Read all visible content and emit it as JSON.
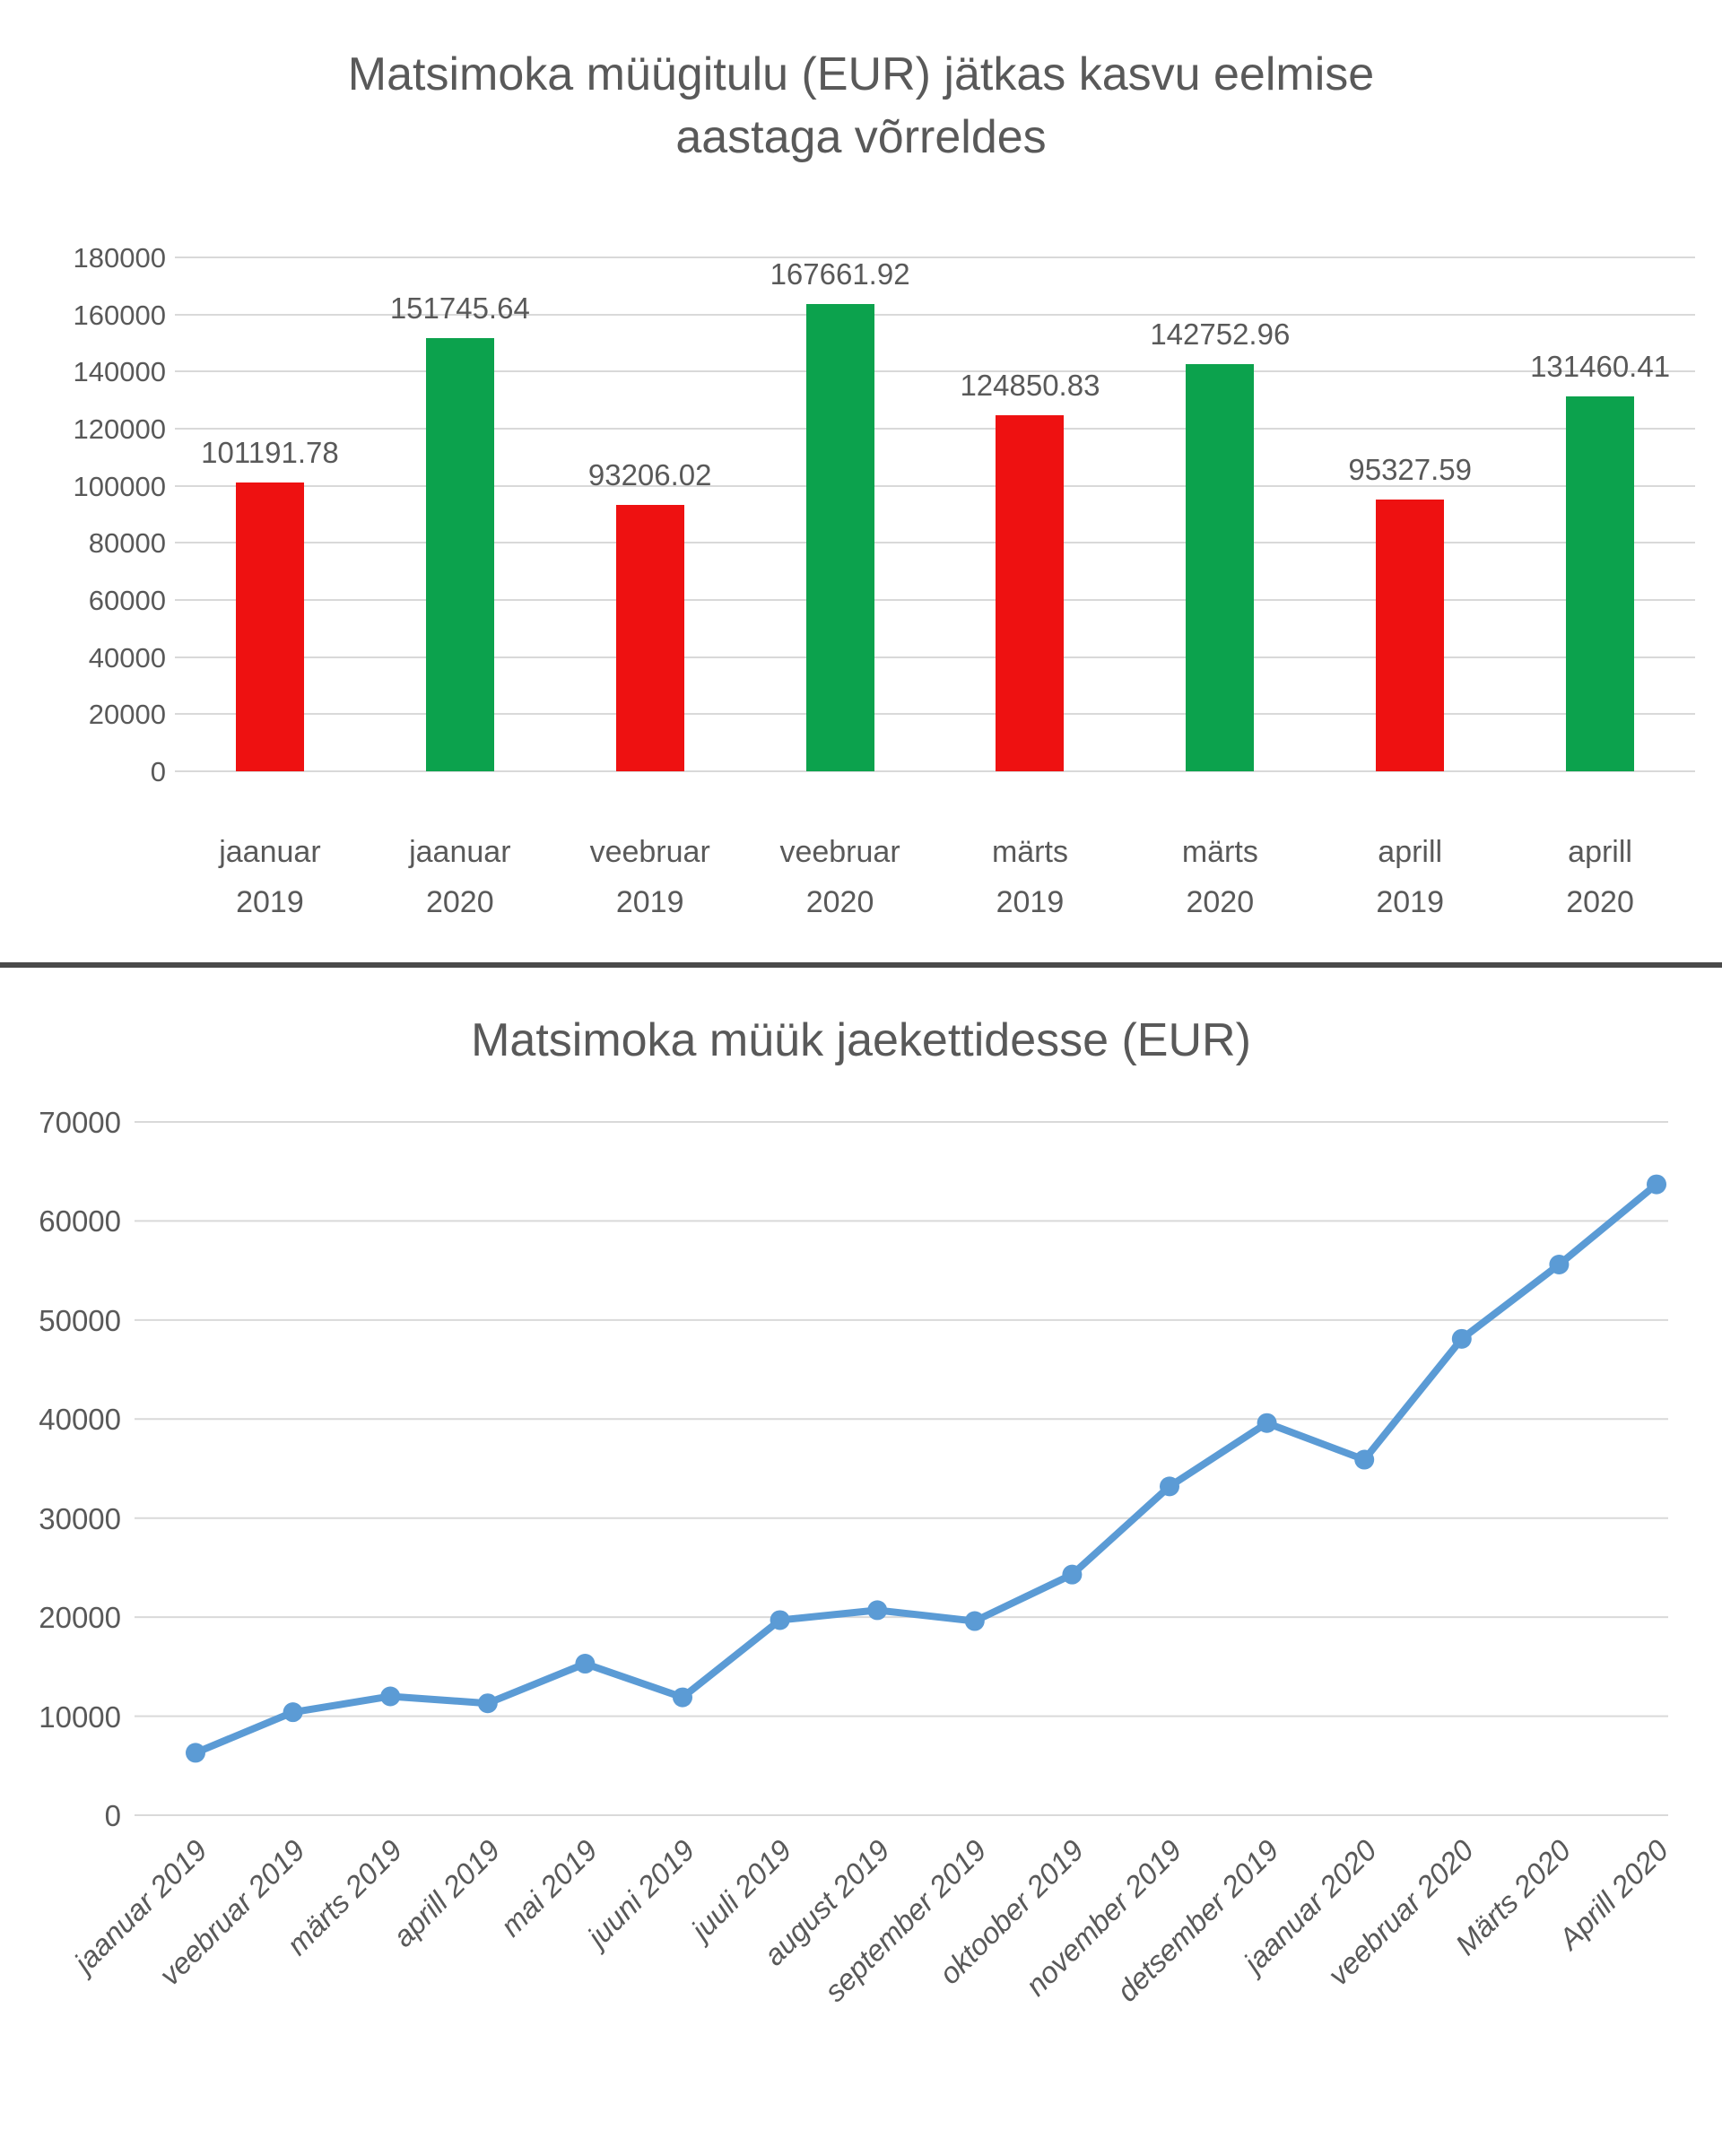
{
  "styles": {
    "background": "#ffffff",
    "text_color": "#595959",
    "gridline_color": "#d9d9d9",
    "divider_color": "#4a4a4a",
    "bar_red": "#ee1111",
    "bar_green": "#0ca24d",
    "line_blue": "#5b9bd5"
  },
  "chart_data": [
    {
      "type": "bar",
      "title": "Matsimoka müügitulu (EUR) jätkas kasvu eelmise aastaga võrreldes",
      "title_lines": [
        "Matsimoka müügitulu (EUR) jätkas kasvu eelmise",
        "aastaga võrreldes"
      ],
      "categories": [
        "jaanuar 2019",
        "jaanuar 2020",
        "veebruar 2019",
        "veebruar 2020",
        "märts 2019",
        "märts 2020",
        "aprill 2019",
        "aprill 2020"
      ],
      "values": [
        101191.78,
        151745.64,
        93206.02,
        167661.92,
        124850.83,
        142752.96,
        95327.59,
        131460.41
      ],
      "data_labels": [
        "101191.78",
        "151745.64",
        "93206.02",
        "167661.92",
        "124850.83",
        "142752.96",
        "95327.59",
        "131460.41"
      ],
      "bar_colors": [
        "#ee1111",
        "#0ca24d",
        "#ee1111",
        "#0ca24d",
        "#ee1111",
        "#0ca24d",
        "#ee1111",
        "#0ca24d"
      ],
      "color_meaning": {
        "2019": "#ee1111",
        "2020": "#0ca24d"
      },
      "ylim": [
        0,
        180000
      ],
      "ytick_step": 20000,
      "yticks": [
        "0",
        "20000",
        "40000",
        "60000",
        "80000",
        "100000",
        "120000",
        "140000",
        "160000",
        "180000"
      ],
      "grid": true,
      "legend_position": "none"
    },
    {
      "type": "line",
      "title": "Matsimoka müük jaekettidesse (EUR)",
      "categories": [
        "jaanuar 2019",
        "veebruar 2019",
        "märts 2019",
        "aprill 2019",
        "mai 2019",
        "juuni 2019",
        "juuli 2019",
        "august 2019",
        "september 2019",
        "oktoober 2019",
        "november 2019",
        "detsember 2019",
        "jaanuar 2020",
        "veebruar 2020",
        "Märts 2020",
        "Aprill 2020"
      ],
      "values": [
        6300,
        10400,
        12000,
        11300,
        15300,
        11900,
        19700,
        20700,
        19600,
        24300,
        33200,
        39600,
        35900,
        48100,
        55600,
        63700
      ],
      "ylim": [
        0,
        70000
      ],
      "ytick_step": 10000,
      "yticks": [
        "0",
        "10000",
        "20000",
        "30000",
        "40000",
        "50000",
        "60000",
        "70000"
      ],
      "line_color": "#5b9bd5",
      "marker": "circle",
      "grid": true,
      "legend_position": "none"
    }
  ]
}
